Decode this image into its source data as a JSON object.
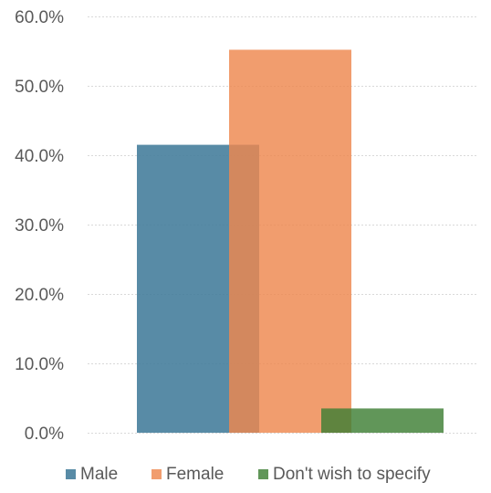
{
  "chart_data": {
    "type": "bar",
    "y_axis": {
      "min": 0,
      "max": 60,
      "step": 10,
      "tick_labels": [
        "0.0%",
        "10.0%",
        "20.0%",
        "30.0%",
        "40.0%",
        "50.0%",
        "60.0%"
      ]
    },
    "grid": true,
    "overlap": true,
    "legend_position": "bottom",
    "series": [
      {
        "name": "Male",
        "value": 41.5,
        "color": "#417b9a",
        "opacity": 0.88
      },
      {
        "name": "Female",
        "value": 55.2,
        "color": "#ee874e",
        "opacity": 0.82
      },
      {
        "name": "Don't wish to specify",
        "value": 3.5,
        "color": "#3e7f35",
        "opacity": 0.82
      }
    ]
  }
}
